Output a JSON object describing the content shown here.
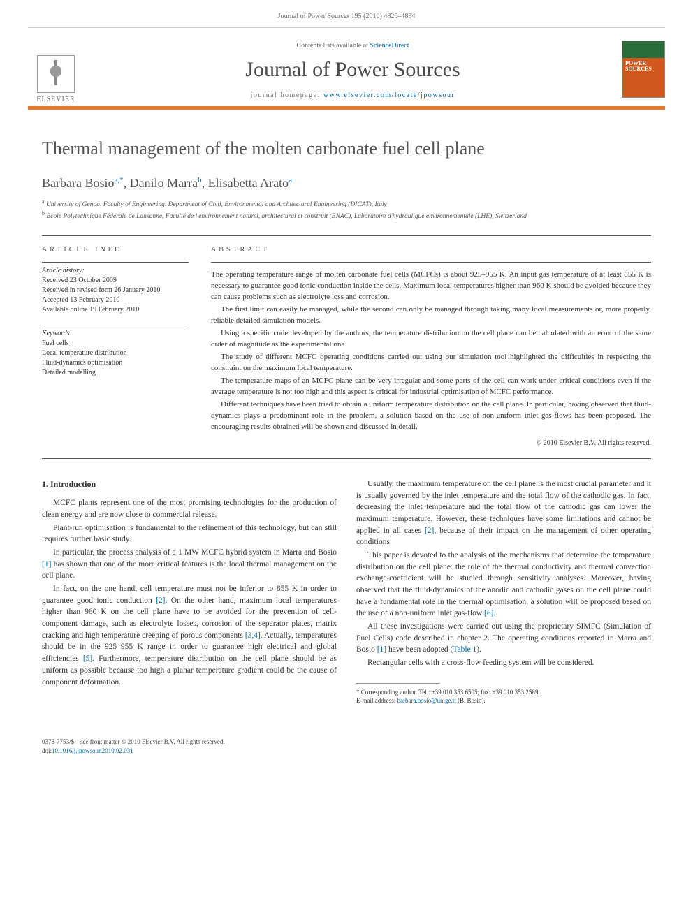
{
  "running_head": "Journal of Power Sources 195 (2010) 4826–4834",
  "masthead": {
    "contents_prefix": "Contents lists available at ",
    "contents_link": "ScienceDirect",
    "journal_title": "Journal of Power Sources",
    "homepage_prefix": "journal homepage: ",
    "homepage_url": "www.elsevier.com/locate/jpowsour",
    "publisher": "ELSEVIER"
  },
  "article": {
    "title": "Thermal management of the molten carbonate fuel cell plane",
    "authors_html": "Barbara Bosio",
    "author1": "Barbara Bosio",
    "author1_sup": "a,",
    "author2": "Danilo Marra",
    "author2_sup": "b",
    "author3": "Elisabetta Arato",
    "author3_sup": "a",
    "star": "*",
    "affil_a_sup": "a",
    "affil_a": "University of Genoa, Faculty of Engineering, Department of Civil, Environmental and Architectural Engineering (DICAT), Italy",
    "affil_b_sup": "b",
    "affil_b": "Ecole Polytechnique Fédérale de Lausanne, Faculté de l'environnement naturel, architectural et construit (ENAC), Laboratoire d'hydraulique environnementale (LHE), Switzerland"
  },
  "info": {
    "heading": "ARTICLE INFO",
    "history_label": "Article history:",
    "history_1": "Received 23 October 2009",
    "history_2": "Received in revised form 26 January 2010",
    "history_3": "Accepted 13 February 2010",
    "history_4": "Available online 19 February 2010",
    "keywords_label": "Keywords:",
    "kw1": "Fuel cells",
    "kw2": "Local temperature distribution",
    "kw3": "Fluid-dynamics optimisation",
    "kw4": "Detailed modelling"
  },
  "abstract": {
    "heading": "ABSTRACT",
    "p1": "The operating temperature range of molten carbonate fuel cells (MCFCs) is about 925–955 K. An input gas temperature of at least 855 K is necessary to guarantee good ionic conduction inside the cells. Maximum local temperatures higher than 960 K should be avoided because they can cause problems such as electrolyte loss and corrosion.",
    "p2": "The first limit can easily be managed, while the second can only be managed through taking many local measurements or, more properly, reliable detailed simulation models.",
    "p3": "Using a specific code developed by the authors, the temperature distribution on the cell plane can be calculated with an error of the same order of magnitude as the experimental one.",
    "p4": "The study of different MCFC operating conditions carried out using our simulation tool highlighted the difficulties in respecting the constraint on the maximum local temperature.",
    "p5": "The temperature maps of an MCFC plane can be very irregular and some parts of the cell can work under critical conditions even if the average temperature is not too high and this aspect is critical for industrial optimisation of MCFC performance.",
    "p6": "Different techniques have been tried to obtain a uniform temperature distribution on the cell plane. In particular, having observed that fluid-dynamics plays a predominant role in the problem, a solution based on the use of non-uniform inlet gas-flows has been proposed. The encouraging results obtained will be shown and discussed in detail.",
    "copyright": "© 2010 Elsevier B.V. All rights reserved."
  },
  "body": {
    "section1_heading": "1. Introduction",
    "p1": "MCFC plants represent one of the most promising technologies for the production of clean energy and are now close to commercial release.",
    "p2": "Plant-run optimisation is fundamental to the refinement of this technology, but can still requires further basic study.",
    "p3a": "In particular, the process analysis of a 1 MW MCFC hybrid system in Marra and Bosio ",
    "p3_ref1": "[1]",
    "p3b": " has shown that one of the more critical features is the local thermal management on the cell plane.",
    "p4a": "In fact, on the one hand, cell temperature must not be inferior to 855 K in order to guarantee good ionic conduction ",
    "p4_ref2": "[2]",
    "p4b": ". On the other hand, maximum local temperatures higher than 960 K on the cell plane have to be avoided for the prevention of cell-component damage, such as electrolyte losses, corrosion of the separator plates, matrix cracking and high temperature creeping of porous components ",
    "p4_ref34": "[3,4]",
    "p4c": ". Actually, temperatures should be in the 925–955 K range in order to guarantee high electrical and global efficiencies ",
    "p5_ref5": "[5]",
    "p5a": ". Furthermore, temperature distribution on the cell plane should be as uniform as possible because too high a planar temperature gradient could be the cause of component deformation.",
    "p6a": "Usually, the maximum temperature on the cell plane is the most crucial parameter and it is usually governed by the inlet temperature and the total flow of the cathodic gas. In fact, decreasing the inlet temperature and the total flow of the cathodic gas can lower the maximum temperature. However, these techniques have some limitations and cannot be applied in all cases ",
    "p6_ref2": "[2]",
    "p6b": ", because of their impact on the management of other operating conditions.",
    "p7a": "This paper is devoted to the analysis of the mechanisms that determine the temperature distribution on the cell plane: the role of the thermal conductivity and thermal convection exchange-coefficient will be studied through sensitivity analyses. Moreover, having observed that the fluid-dynamics of the anodic and cathodic gases on the cell plane could have a fundamental role in the thermal optimisation, a solution will be proposed based on the use of a non-uniform inlet gas-flow ",
    "p7_ref6": "[6]",
    "p7b": ".",
    "p8a": "All these investigations were carried out using the proprietary SIMFC (Simulation of Fuel Cells) code described in chapter 2. The operating conditions reported in Marra and Bosio ",
    "p8_ref1": "[1]",
    "p8b": " have been adopted (",
    "p8_table": "Table 1",
    "p8c": ").",
    "p9": "Rectangular cells with a cross-flow feeding system will be considered."
  },
  "footnote": {
    "corr_label": "* Corresponding author. Tel.: +39 010 353 6505; fax: +39 010 353 2589.",
    "email_label": "E-mail address: ",
    "email": "barbara.bosio@unige.it",
    "email_tail": " (B. Bosio)."
  },
  "bottom": {
    "issn": "0378-7753/$ – see front matter © 2010 Elsevier B.V. All rights reserved.",
    "doi_label": "doi:",
    "doi": "10.1016/j.jpowsour.2010.02.031"
  },
  "colors": {
    "accent_orange": "#e8792f",
    "link_blue": "#0066aa",
    "text_gray": "#555555"
  }
}
